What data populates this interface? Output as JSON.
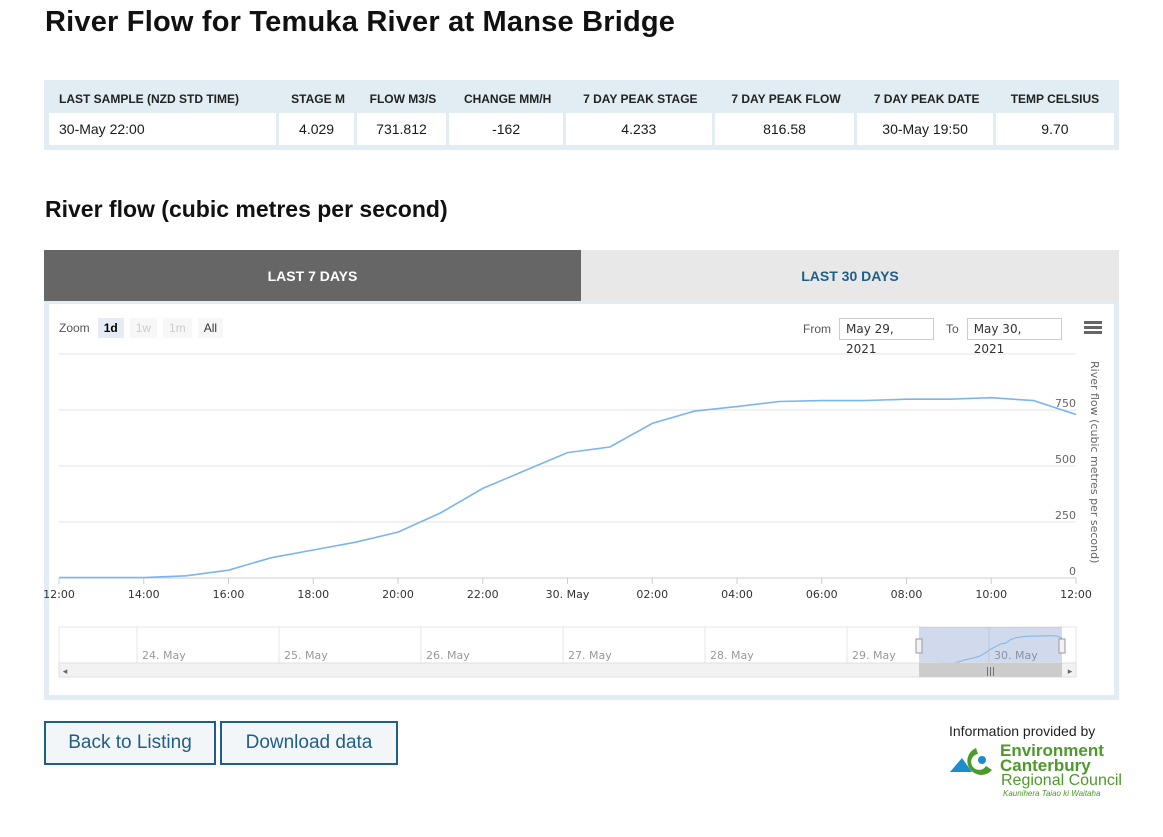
{
  "page": {
    "title": "River Flow for Temuka River at Manse Bridge",
    "section_title": "River flow (cubic metres per second)"
  },
  "summary": {
    "headers": [
      "LAST SAMPLE (NZD STD TIME)",
      "STAGE M",
      "FLOW M3/S",
      "CHANGE MM/H",
      "7 DAY PEAK STAGE",
      "7 DAY PEAK FLOW",
      "7 DAY PEAK DATE",
      "TEMP CELSIUS"
    ],
    "values": [
      "30-May 22:00",
      "4.029",
      "731.812",
      "-162",
      "4.233",
      "816.58",
      "30-May 19:50",
      "9.70"
    ]
  },
  "tabs": [
    {
      "label": "LAST 7 DAYS",
      "active": true
    },
    {
      "label": "LAST 30 DAYS",
      "active": false
    }
  ],
  "range_selector": {
    "zoom_label": "Zoom",
    "buttons": [
      {
        "label": "1d",
        "state": "selected"
      },
      {
        "label": "1w",
        "state": "disabled"
      },
      {
        "label": "1m",
        "state": "disabled"
      },
      {
        "label": "All",
        "state": "normal"
      }
    ],
    "from_label": "From",
    "from_value": "May 29, 2021",
    "to_label": "To",
    "to_value": "May 30, 2021"
  },
  "chart_data": {
    "type": "line",
    "ylabel": "River flow (cubic metres per second)",
    "y_ticks": [
      0,
      250,
      500,
      750
    ],
    "ylim": [
      0,
      1000
    ],
    "grid": true,
    "line_color": "#7cb5ec",
    "x_ticks": [
      "12:00",
      "14:00",
      "16:00",
      "18:00",
      "20:00",
      "22:00",
      "30. May",
      "02:00",
      "04:00",
      "06:00",
      "08:00",
      "10:00",
      "12:00"
    ],
    "series": [
      {
        "x": [
          "12:00",
          "13:00",
          "14:00",
          "15:00",
          "16:00",
          "17:00",
          "18:00",
          "19:00",
          "20:00",
          "21:00",
          "22:00",
          "23:00",
          "30. May 00:00",
          "01:00",
          "02:00",
          "03:00",
          "04:00",
          "05:00",
          "06:00",
          "07:00",
          "08:00",
          "09:00",
          "10:00",
          "11:00",
          "12:00"
        ],
        "values": [
          2,
          2,
          2,
          10,
          35,
          90,
          125,
          160,
          205,
          290,
          400,
          480,
          560,
          585,
          690,
          745,
          765,
          788,
          792,
          792,
          798,
          798,
          805,
          792,
          730
        ]
      }
    ],
    "navigator": {
      "labels": [
        "24. May",
        "25. May",
        "26. May",
        "27. May",
        "28. May",
        "29. May",
        "30. May"
      ]
    }
  },
  "buttons": {
    "back": "Back to Listing",
    "download": "Download data"
  },
  "footer": {
    "info": "Information provided by",
    "logo_line1": "Environment",
    "logo_line2": "Canterbury",
    "logo_line3": "Regional Council",
    "logo_line4": "Kaunihera Taiao ki Waitaha",
    "logo_green": "#4c9a2a",
    "logo_blue": "#1b8dcf"
  },
  "colors": {
    "accent": "#1f5f87",
    "tab_active": "#666666",
    "table_bg": "#e1ecf3"
  }
}
